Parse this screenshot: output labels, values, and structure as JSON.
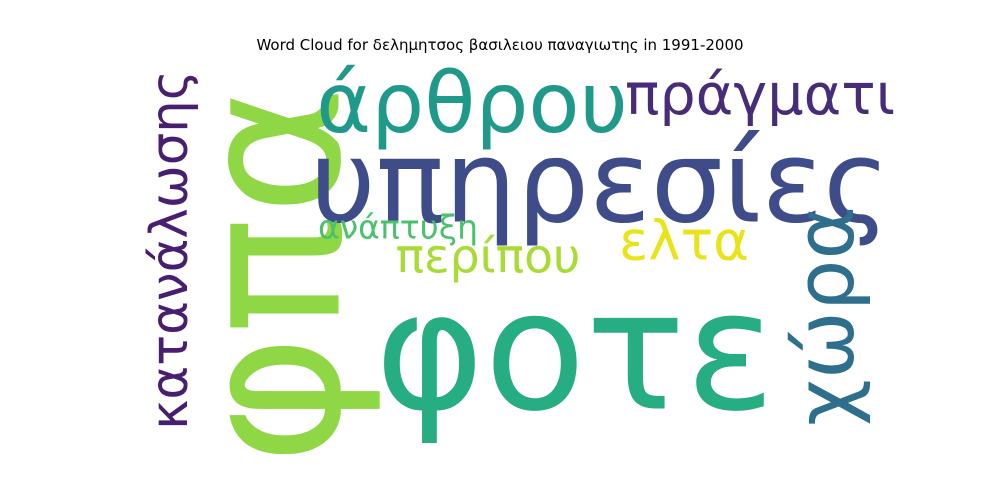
{
  "chart_data": {
    "type": "wordcloud",
    "title": "Word Cloud for δελημητσος βασιλειου παναγιωτης in 1991-2000",
    "words": [
      {
        "text": "φοτε",
        "weight": 1.0,
        "color": "#26ad81",
        "orientation": "horizontal"
      },
      {
        "text": "φπα",
        "weight": 0.95,
        "color": "#8fd744",
        "orientation": "vertical"
      },
      {
        "text": "υπηρεσίες",
        "weight": 0.55,
        "color": "#3e4c8a",
        "orientation": "horizontal"
      },
      {
        "text": "άρθρου",
        "weight": 0.45,
        "color": "#1f9a8a",
        "orientation": "horizontal"
      },
      {
        "text": "κατανάλωσης",
        "weight": 0.42,
        "color": "#481f70",
        "orientation": "vertical"
      },
      {
        "text": "χώρα",
        "weight": 0.4,
        "color": "#2e6f8e",
        "orientation": "vertical"
      },
      {
        "text": "πράγματι",
        "weight": 0.35,
        "color": "#472c7a",
        "orientation": "horizontal"
      },
      {
        "text": "ελτα",
        "weight": 0.3,
        "color": "#e8e419",
        "orientation": "horizontal"
      },
      {
        "text": "περίπου",
        "weight": 0.22,
        "color": "#a8db34",
        "orientation": "horizontal"
      },
      {
        "text": "ανάπτυξη",
        "weight": 0.18,
        "color": "#4ac16d",
        "orientation": "horizontal"
      }
    ]
  }
}
